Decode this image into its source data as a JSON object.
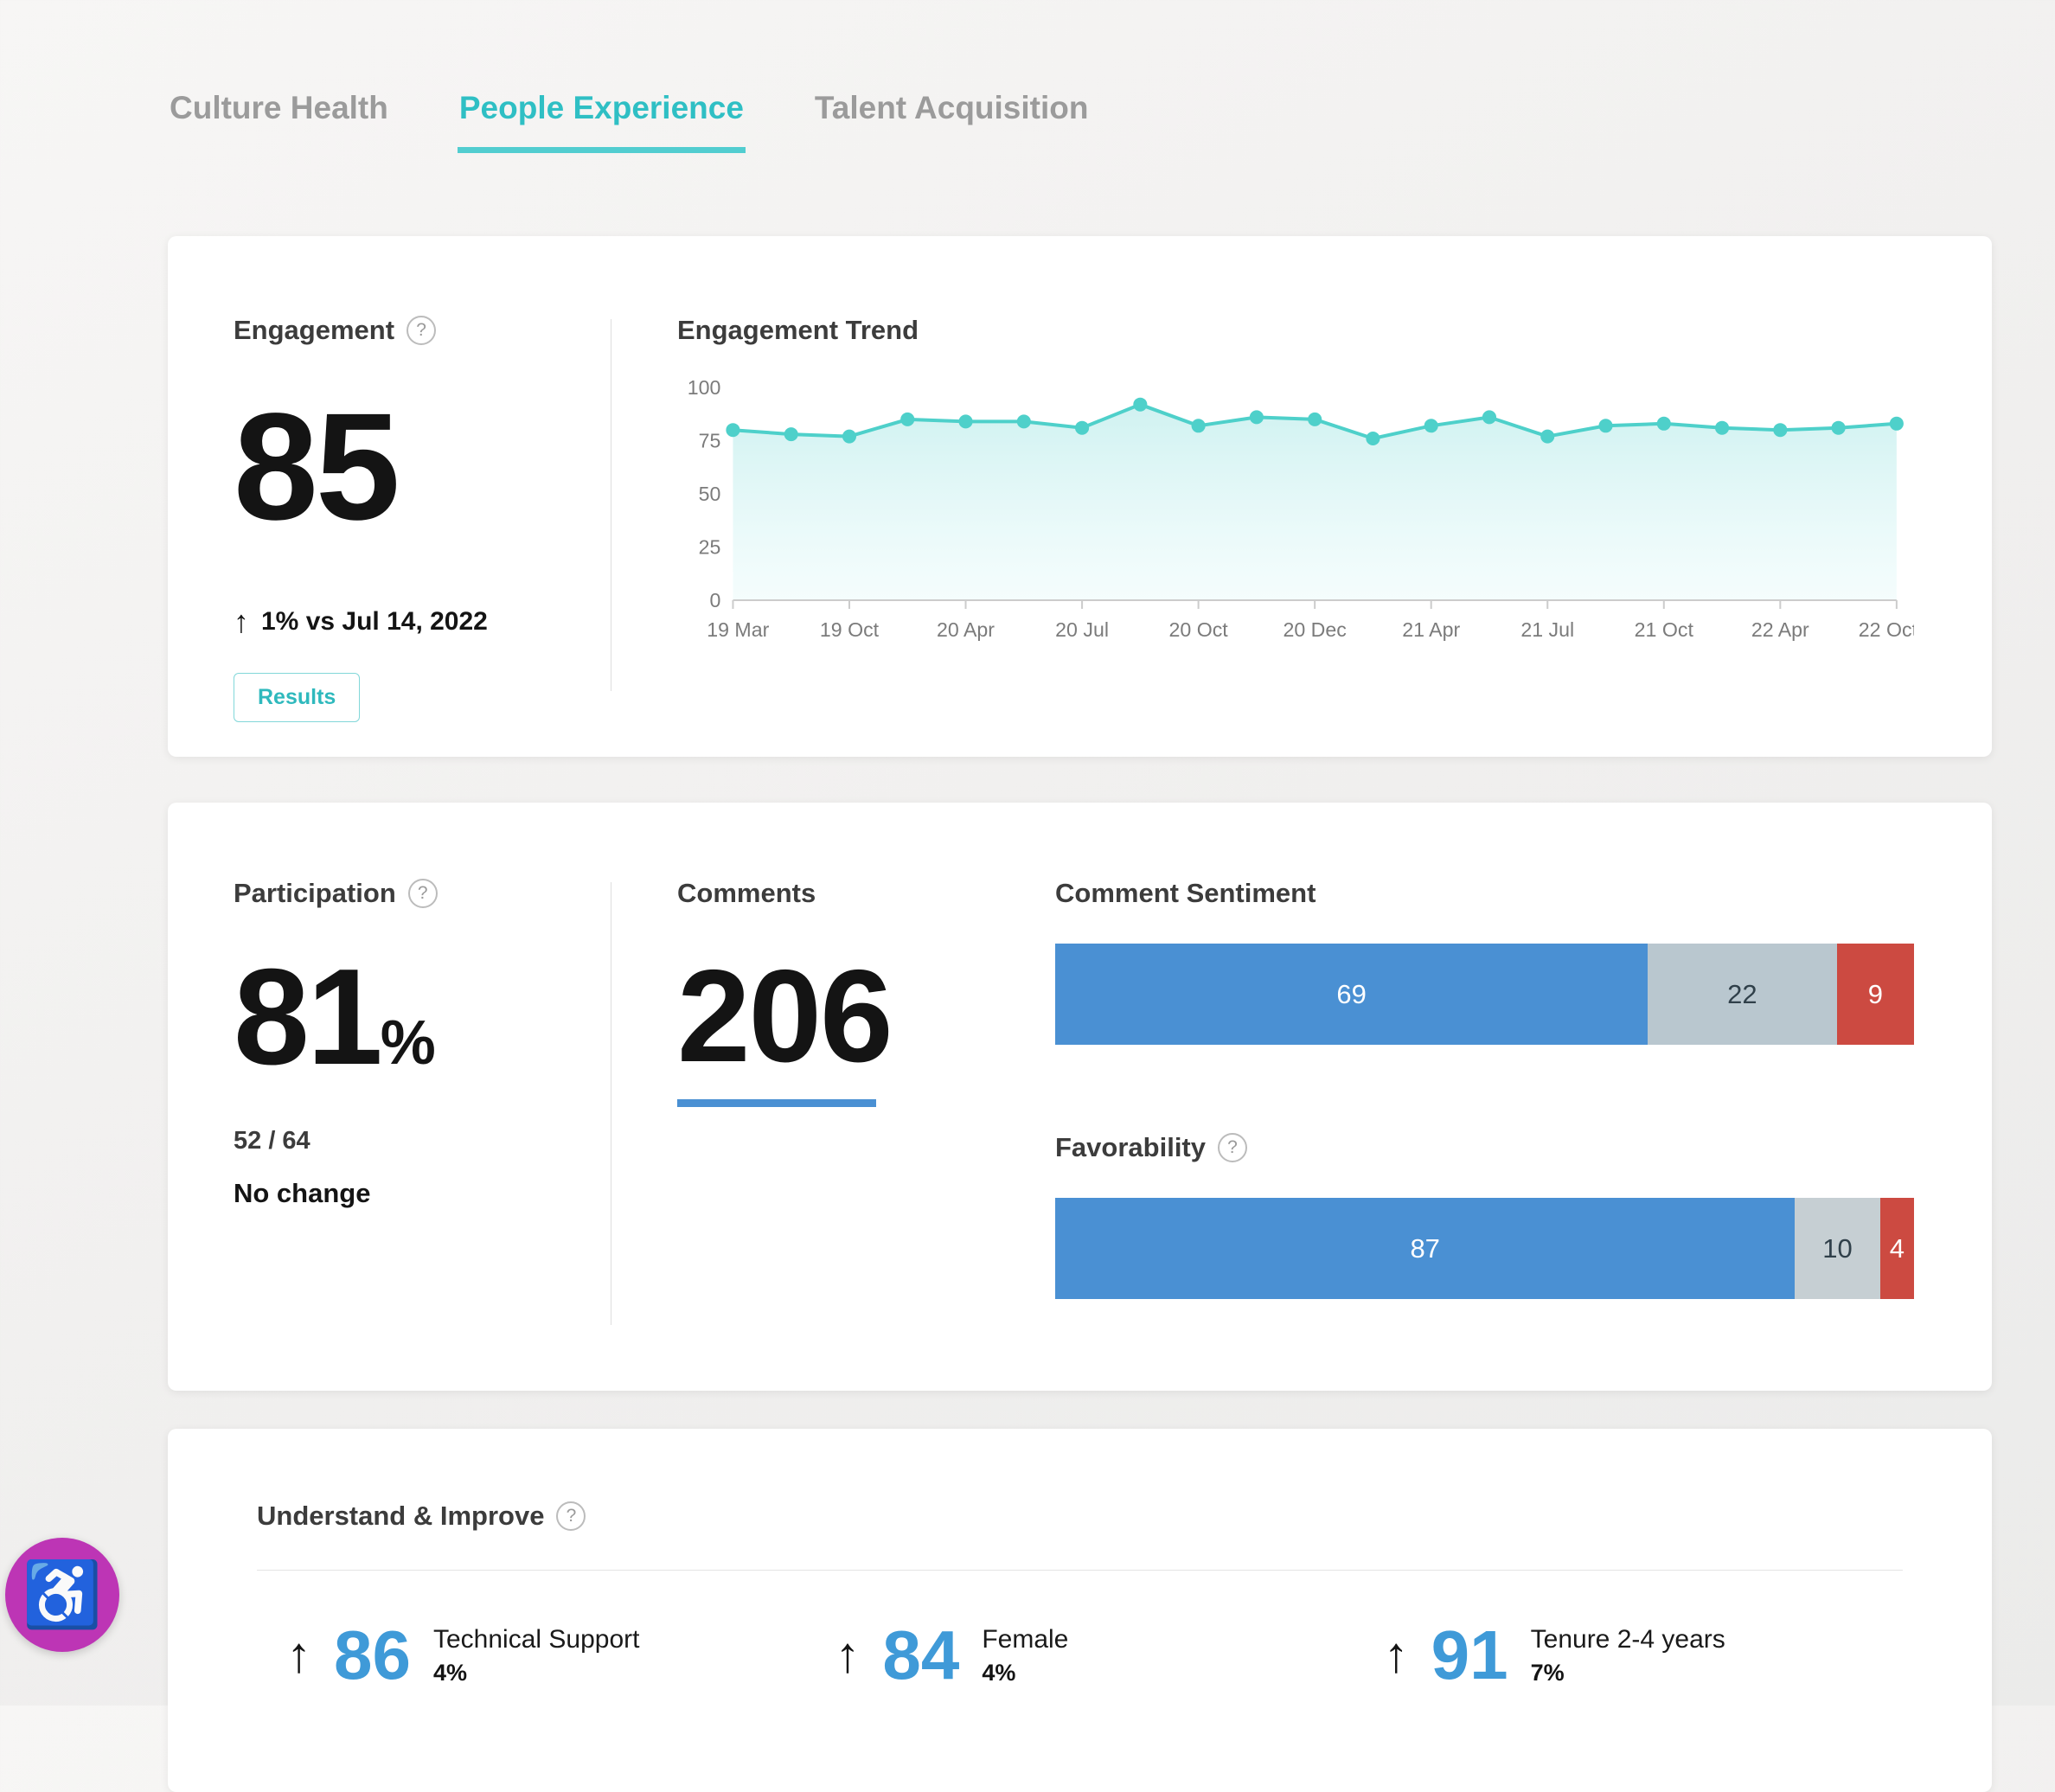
{
  "icons": {
    "help": "?",
    "accessibility": "♿"
  },
  "tabs": [
    {
      "label": "Culture Health",
      "active": false
    },
    {
      "label": "People Experience",
      "active": true
    },
    {
      "label": "Talent Acquisition",
      "active": false
    }
  ],
  "engagement": {
    "title": "Engagement",
    "score": "85",
    "change_arrow": "↑",
    "change": "1% vs Jul 14, 2022",
    "results_label": "Results",
    "trend_title": "Engagement Trend"
  },
  "chart_data": {
    "type": "area",
    "title": "Engagement Trend",
    "x_tick_labels": [
      "19 Mar",
      "19 Oct",
      "20 Apr",
      "20 Jul",
      "20 Oct",
      "20 Dec",
      "21 Apr",
      "21 Jul",
      "21 Oct",
      "22 Apr",
      "22 Oct"
    ],
    "y_ticks": [
      0,
      25,
      50,
      75,
      100
    ],
    "ylim": [
      0,
      100
    ],
    "values": [
      80,
      78,
      77,
      85,
      84,
      84,
      81,
      92,
      82,
      86,
      85,
      76,
      82,
      86,
      77,
      82,
      83,
      81,
      80,
      81,
      83
    ],
    "line_color": "#4ed0ca",
    "fill_top_color": "#cdf1f0",
    "fill_bottom_color": "#ecfbfb",
    "grid": false,
    "legend": "none"
  },
  "participation": {
    "title": "Participation",
    "value": "81",
    "unit": "%",
    "fraction": "52 / 64",
    "change": "No change"
  },
  "comments": {
    "title": "Comments",
    "count": "206"
  },
  "comment_sentiment": {
    "title": "Comment Sentiment",
    "segments": [
      {
        "label": "69",
        "value": 69,
        "color": "#4a90d3",
        "text_color": "#ffffff"
      },
      {
        "label": "22",
        "value": 22,
        "color": "#b9c7cf",
        "text_color": "#30404a"
      },
      {
        "label": "9",
        "value": 9,
        "color": "#cc4a41",
        "text_color": "#ffffff"
      }
    ]
  },
  "favorability": {
    "title": "Favorability",
    "segments": [
      {
        "label": "87",
        "value": 87,
        "color": "#4a90d3",
        "text_color": "#ffffff"
      },
      {
        "label": "10",
        "value": 10,
        "color": "#c6cfd3",
        "text_color": "#30404a"
      },
      {
        "label": "4",
        "value": 4,
        "color": "#cc4a41",
        "text_color": "#ffffff"
      }
    ]
  },
  "understand": {
    "title": "Understand & Improve",
    "highlights": [
      {
        "arrow": "↑",
        "score": "86",
        "label": "Technical Support",
        "percent": "4%"
      },
      {
        "arrow": "↑",
        "score": "84",
        "label": "Female",
        "percent": "4%"
      },
      {
        "arrow": "↑",
        "score": "91",
        "label": "Tenure 2-4 years",
        "percent": "7%"
      }
    ]
  }
}
